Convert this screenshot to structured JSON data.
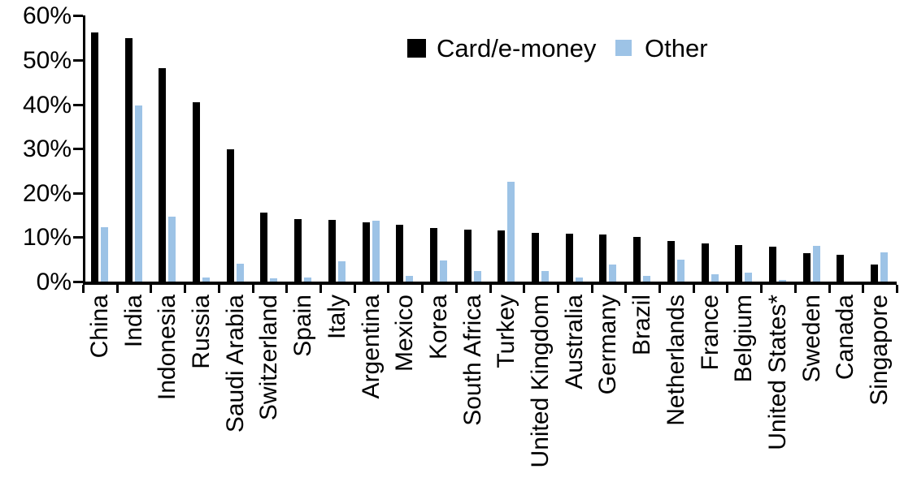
{
  "chart_data": {
    "type": "bar",
    "title": "",
    "xlabel": "",
    "ylabel": "",
    "ylim": [
      0,
      60
    ],
    "ytick_labels": [
      "0%",
      "10%",
      "20%",
      "30%",
      "40%",
      "50%",
      "60%"
    ],
    "ytick_values": [
      0,
      10,
      20,
      30,
      40,
      50,
      60
    ],
    "grid": false,
    "legend_position": "top-center",
    "categories": [
      "China",
      "India",
      "Indonesia",
      "Russia",
      "Saudi Arabia",
      "Switzerland",
      "Spain",
      "Italy",
      "Argentina",
      "Mexico",
      "Korea",
      "South Africa",
      "Turkey",
      "United Kingdom",
      "Australia",
      "Germany",
      "Brazil",
      "Netherlands",
      "France",
      "Belgium",
      "United States*",
      "Sweden",
      "Canada",
      "Singapore"
    ],
    "series": [
      {
        "name": "Card/e-money",
        "color": "#000000",
        "values": [
          56.2,
          55.0,
          48.2,
          40.5,
          29.9,
          15.6,
          14.1,
          14.0,
          13.3,
          12.9,
          12.1,
          11.7,
          11.6,
          11.0,
          10.8,
          10.6,
          10.0,
          9.2,
          8.6,
          8.2,
          7.9,
          6.5,
          6.0,
          3.9
        ]
      },
      {
        "name": "Other",
        "color": "#9DC3E6",
        "values": [
          12.3,
          39.7,
          14.6,
          1.0,
          4.0,
          0.8,
          1.0,
          4.6,
          13.8,
          1.3,
          4.7,
          2.4,
          22.5,
          2.3,
          1.0,
          3.9,
          1.2,
          4.9,
          1.6,
          2.1,
          0.3,
          8.0,
          0.0,
          6.6
        ]
      }
    ]
  }
}
